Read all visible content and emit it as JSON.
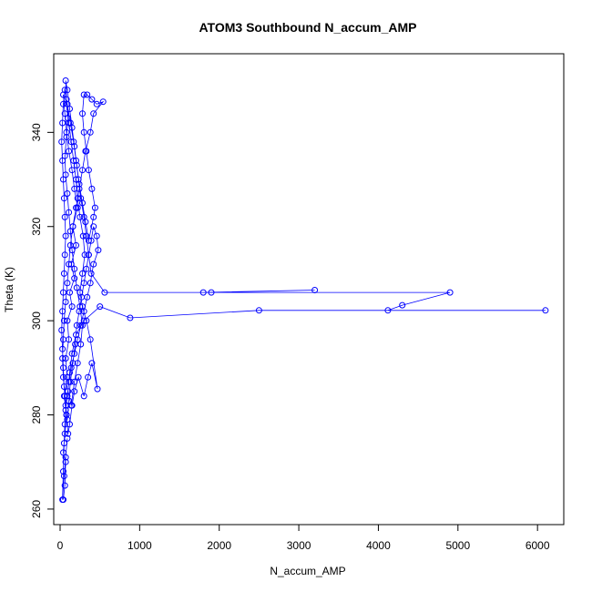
{
  "chart_data": {
    "type": "line",
    "title": "ATOM3 Southbound N_accum_AMP",
    "xlabel": "N_accum_AMP",
    "ylabel": "Theta (K)",
    "xlim": [
      -80,
      6330
    ],
    "ylim": [
      256.7,
      356.7
    ],
    "xticks": [
      0,
      1000,
      2000,
      3000,
      4000,
      5000,
      6000
    ],
    "yticks": [
      260,
      280,
      300,
      320,
      340
    ],
    "color": "#0000ff",
    "marker": "open-circle",
    "grid": false,
    "legend": "none",
    "series": [
      {
        "name": "",
        "points": [
          [
            40,
            262
          ],
          [
            60,
            265
          ],
          [
            70,
            270
          ],
          [
            40,
            272
          ],
          [
            60,
            276
          ],
          [
            80,
            280
          ],
          [
            50,
            284
          ],
          [
            90,
            288
          ],
          [
            70,
            292
          ],
          [
            110,
            296
          ],
          [
            90,
            300
          ],
          [
            150,
            303
          ],
          [
            120,
            306
          ],
          [
            180,
            309
          ],
          [
            140,
            312
          ],
          [
            200,
            316
          ],
          [
            160,
            320
          ],
          [
            220,
            324
          ],
          [
            180,
            328
          ],
          [
            150,
            332
          ],
          [
            110,
            336
          ],
          [
            80,
            340
          ],
          [
            60,
            344
          ],
          [
            40,
            348
          ],
          [
            90,
            346
          ],
          [
            130,
            342
          ],
          [
            170,
            338
          ],
          [
            200,
            334
          ],
          [
            230,
            330
          ],
          [
            260,
            326
          ],
          [
            300,
            322
          ],
          [
            330,
            318
          ],
          [
            360,
            314
          ],
          [
            390,
            310
          ],
          [
            560,
            306
          ],
          [
            1800,
            306
          ],
          [
            3200,
            306.5
          ],
          [
            1900,
            306
          ],
          [
            4900,
            306
          ],
          [
            4300,
            303.3
          ],
          [
            4120,
            302.2
          ],
          [
            6100,
            302.2
          ],
          [
            2500,
            302.2
          ],
          [
            880,
            300.6
          ],
          [
            500,
            303
          ],
          [
            300,
            300
          ],
          [
            200,
            297
          ],
          [
            150,
            293
          ],
          [
            120,
            289
          ],
          [
            100,
            285
          ],
          [
            140,
            282
          ],
          [
            180,
            287
          ],
          [
            220,
            291
          ],
          [
            260,
            295
          ],
          [
            280,
            299
          ],
          [
            250,
            303
          ],
          [
            210,
            307
          ],
          [
            180,
            311
          ],
          [
            150,
            315
          ],
          [
            130,
            319
          ],
          [
            110,
            323
          ],
          [
            90,
            327
          ],
          [
            70,
            331
          ],
          [
            60,
            335
          ],
          [
            80,
            339
          ],
          [
            100,
            343
          ],
          [
            80,
            347
          ],
          [
            70,
            351
          ],
          [
            90,
            349
          ],
          [
            120,
            345
          ],
          [
            150,
            341
          ],
          [
            180,
            337
          ],
          [
            210,
            333
          ],
          [
            240,
            329
          ],
          [
            280,
            325
          ],
          [
            320,
            321
          ],
          [
            360,
            317
          ],
          [
            420,
            322
          ],
          [
            440,
            324
          ],
          [
            400,
            328
          ],
          [
            360,
            332
          ],
          [
            330,
            336
          ],
          [
            300,
            340
          ],
          [
            280,
            344
          ],
          [
            300,
            348
          ],
          [
            340,
            348
          ],
          [
            400,
            347
          ],
          [
            460,
            346
          ],
          [
            540,
            346.5
          ],
          [
            420,
            344
          ],
          [
            380,
            340
          ],
          [
            320,
            336
          ],
          [
            280,
            332
          ],
          [
            240,
            328
          ],
          [
            200,
            324
          ],
          [
            160,
            320
          ],
          [
            130,
            316
          ],
          [
            110,
            312
          ],
          [
            90,
            308
          ],
          [
            70,
            304
          ],
          [
            50,
            300
          ],
          [
            40,
            296
          ],
          [
            30,
            292
          ],
          [
            40,
            288
          ],
          [
            60,
            284
          ],
          [
            80,
            280
          ],
          [
            100,
            276
          ],
          [
            120,
            278
          ],
          [
            150,
            282
          ],
          [
            180,
            285
          ],
          [
            230,
            288
          ],
          [
            300,
            284
          ],
          [
            350,
            288
          ],
          [
            400,
            291
          ],
          [
            470,
            285.5
          ],
          [
            380,
            296
          ],
          [
            330,
            300
          ],
          [
            280,
            303
          ],
          [
            250,
            306
          ],
          [
            280,
            310
          ],
          [
            310,
            314
          ],
          [
            290,
            318
          ],
          [
            250,
            322
          ],
          [
            220,
            326
          ],
          [
            200,
            330
          ],
          [
            170,
            334
          ],
          [
            140,
            338
          ],
          [
            110,
            342
          ],
          [
            90,
            346
          ],
          [
            60,
            349
          ],
          [
            40,
            346
          ],
          [
            30,
            342
          ],
          [
            20,
            338
          ],
          [
            30,
            334
          ],
          [
            40,
            330
          ],
          [
            50,
            326
          ],
          [
            60,
            322
          ],
          [
            70,
            318
          ],
          [
            60,
            314
          ],
          [
            50,
            310
          ],
          [
            40,
            306
          ],
          [
            30,
            302
          ],
          [
            20,
            298
          ],
          [
            30,
            294
          ],
          [
            40,
            290
          ],
          [
            50,
            286
          ],
          [
            70,
            282
          ],
          [
            90,
            279
          ],
          [
            110,
            283
          ],
          [
            130,
            287
          ],
          [
            160,
            291
          ],
          [
            190,
            295
          ],
          [
            210,
            299
          ],
          [
            240,
            302
          ],
          [
            270,
            305
          ],
          [
            300,
            308
          ],
          [
            330,
            311
          ],
          [
            360,
            314
          ],
          [
            390,
            317
          ],
          [
            420,
            320
          ],
          [
            460,
            318
          ],
          [
            480,
            315
          ],
          [
            420,
            312
          ],
          [
            380,
            308
          ],
          [
            340,
            305
          ],
          [
            300,
            302
          ],
          [
            260,
            299
          ],
          [
            220,
            296
          ],
          [
            180,
            293
          ],
          [
            140,
            290
          ],
          [
            110,
            287
          ],
          [
            90,
            284
          ],
          [
            70,
            281
          ],
          [
            60,
            278
          ],
          [
            50,
            274
          ],
          [
            40,
            268
          ],
          [
            30,
            262
          ],
          [
            50,
            267
          ],
          [
            70,
            271
          ],
          [
            90,
            275
          ]
        ]
      }
    ]
  }
}
